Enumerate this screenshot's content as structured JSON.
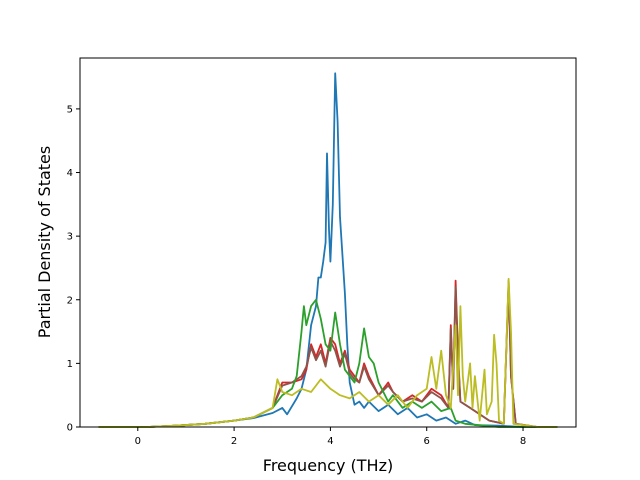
{
  "chart_data": {
    "type": "line",
    "title": "",
    "xlabel": "Frequency (THz)",
    "ylabel": "Partial Density of States",
    "xlim": [
      -1.2,
      9.1
    ],
    "ylim": [
      0,
      5.8
    ],
    "xticks": [
      0,
      2,
      4,
      6,
      8
    ],
    "yticks": [
      0,
      1,
      2,
      3,
      4,
      5
    ],
    "grid": false,
    "legend": "none",
    "series": [
      {
        "color": "#1f77b4",
        "points": [
          [
            -0.8,
            0
          ],
          [
            0.2,
            0
          ],
          [
            0.8,
            0.02
          ],
          [
            1.4,
            0.05
          ],
          [
            2.0,
            0.1
          ],
          [
            2.4,
            0.14
          ],
          [
            2.8,
            0.22
          ],
          [
            3.0,
            0.3
          ],
          [
            3.1,
            0.2
          ],
          [
            3.3,
            0.45
          ],
          [
            3.4,
            0.6
          ],
          [
            3.5,
            0.9
          ],
          [
            3.6,
            1.6
          ],
          [
            3.7,
            1.9
          ],
          [
            3.75,
            2.35
          ],
          [
            3.8,
            2.35
          ],
          [
            3.85,
            2.6
          ],
          [
            3.9,
            2.9
          ],
          [
            3.93,
            4.3
          ],
          [
            3.97,
            3.1
          ],
          [
            4.0,
            2.6
          ],
          [
            4.05,
            3.5
          ],
          [
            4.1,
            5.56
          ],
          [
            4.15,
            4.8
          ],
          [
            4.2,
            3.3
          ],
          [
            4.3,
            2.1
          ],
          [
            4.35,
            1.3
          ],
          [
            4.4,
            0.7
          ],
          [
            4.5,
            0.35
          ],
          [
            4.6,
            0.4
          ],
          [
            4.7,
            0.3
          ],
          [
            4.8,
            0.4
          ],
          [
            5.0,
            0.25
          ],
          [
            5.2,
            0.35
          ],
          [
            5.4,
            0.2
          ],
          [
            5.6,
            0.3
          ],
          [
            5.8,
            0.15
          ],
          [
            6.0,
            0.2
          ],
          [
            6.2,
            0.1
          ],
          [
            6.4,
            0.15
          ],
          [
            6.6,
            0.05
          ],
          [
            6.8,
            0.1
          ],
          [
            7.0,
            0.03
          ],
          [
            7.5,
            0.02
          ],
          [
            8.0,
            0.0
          ],
          [
            8.7,
            0
          ]
        ]
      },
      {
        "color": "#d62728",
        "points": [
          [
            -0.8,
            0
          ],
          [
            0.2,
            0
          ],
          [
            0.8,
            0.02
          ],
          [
            1.4,
            0.05
          ],
          [
            2.0,
            0.1
          ],
          [
            2.4,
            0.15
          ],
          [
            2.8,
            0.3
          ],
          [
            3.0,
            0.7
          ],
          [
            3.2,
            0.7
          ],
          [
            3.4,
            0.75
          ],
          [
            3.5,
            0.9
          ],
          [
            3.6,
            1.3
          ],
          [
            3.7,
            1.1
          ],
          [
            3.8,
            1.3
          ],
          [
            3.9,
            1.0
          ],
          [
            4.0,
            1.4
          ],
          [
            4.1,
            1.3
          ],
          [
            4.2,
            1.0
          ],
          [
            4.3,
            1.2
          ],
          [
            4.4,
            0.9
          ],
          [
            4.5,
            0.8
          ],
          [
            4.6,
            0.7
          ],
          [
            4.7,
            1.0
          ],
          [
            4.8,
            0.8
          ],
          [
            5.0,
            0.5
          ],
          [
            5.2,
            0.7
          ],
          [
            5.3,
            0.55
          ],
          [
            5.5,
            0.4
          ],
          [
            5.7,
            0.5
          ],
          [
            5.9,
            0.4
          ],
          [
            6.1,
            0.6
          ],
          [
            6.3,
            0.5
          ],
          [
            6.45,
            0.3
          ],
          [
            6.5,
            1.6
          ],
          [
            6.55,
            0.6
          ],
          [
            6.6,
            2.3
          ],
          [
            6.65,
            1.2
          ],
          [
            6.7,
            0.4
          ],
          [
            6.9,
            0.3
          ],
          [
            7.1,
            0.2
          ],
          [
            7.3,
            0.1
          ],
          [
            7.6,
            0.05
          ],
          [
            7.7,
            2.3
          ],
          [
            7.75,
            0.8
          ],
          [
            7.85,
            0.05
          ],
          [
            8.3,
            0
          ],
          [
            8.7,
            0
          ]
        ]
      },
      {
        "color": "#8c564b",
        "points": [
          [
            -0.8,
            0
          ],
          [
            0.2,
            0
          ],
          [
            0.8,
            0.02
          ],
          [
            1.4,
            0.05
          ],
          [
            2.0,
            0.1
          ],
          [
            2.4,
            0.15
          ],
          [
            2.8,
            0.3
          ],
          [
            3.0,
            0.65
          ],
          [
            3.2,
            0.7
          ],
          [
            3.4,
            0.8
          ],
          [
            3.5,
            0.95
          ],
          [
            3.6,
            1.25
          ],
          [
            3.7,
            1.05
          ],
          [
            3.8,
            1.2
          ],
          [
            3.9,
            0.95
          ],
          [
            4.0,
            1.35
          ],
          [
            4.1,
            1.2
          ],
          [
            4.2,
            0.95
          ],
          [
            4.3,
            1.15
          ],
          [
            4.4,
            0.85
          ],
          [
            4.5,
            0.75
          ],
          [
            4.6,
            0.7
          ],
          [
            4.7,
            0.95
          ],
          [
            4.8,
            0.75
          ],
          [
            5.0,
            0.5
          ],
          [
            5.2,
            0.65
          ],
          [
            5.3,
            0.55
          ],
          [
            5.5,
            0.4
          ],
          [
            5.7,
            0.45
          ],
          [
            5.9,
            0.4
          ],
          [
            6.1,
            0.55
          ],
          [
            6.3,
            0.45
          ],
          [
            6.45,
            0.3
          ],
          [
            6.5,
            1.55
          ],
          [
            6.55,
            0.6
          ],
          [
            6.6,
            2.2
          ],
          [
            6.65,
            1.1
          ],
          [
            6.7,
            0.4
          ],
          [
            6.9,
            0.3
          ],
          [
            7.1,
            0.2
          ],
          [
            7.3,
            0.1
          ],
          [
            7.6,
            0.05
          ],
          [
            7.7,
            2.25
          ],
          [
            7.75,
            0.8
          ],
          [
            7.85,
            0.05
          ],
          [
            8.3,
            0
          ],
          [
            8.7,
            0
          ]
        ]
      },
      {
        "color": "#2ca02c",
        "points": [
          [
            -0.8,
            0
          ],
          [
            0.2,
            0
          ],
          [
            0.8,
            0.02
          ],
          [
            1.4,
            0.05
          ],
          [
            2.0,
            0.1
          ],
          [
            2.4,
            0.15
          ],
          [
            2.8,
            0.3
          ],
          [
            3.0,
            0.5
          ],
          [
            3.2,
            0.6
          ],
          [
            3.3,
            0.8
          ],
          [
            3.4,
            1.5
          ],
          [
            3.45,
            1.9
          ],
          [
            3.5,
            1.6
          ],
          [
            3.6,
            1.9
          ],
          [
            3.7,
            2.0
          ],
          [
            3.8,
            1.7
          ],
          [
            3.9,
            1.3
          ],
          [
            4.0,
            1.2
          ],
          [
            4.1,
            1.8
          ],
          [
            4.2,
            1.3
          ],
          [
            4.3,
            0.9
          ],
          [
            4.4,
            0.8
          ],
          [
            4.5,
            0.7
          ],
          [
            4.6,
            1.0
          ],
          [
            4.7,
            1.55
          ],
          [
            4.8,
            1.1
          ],
          [
            4.9,
            1.0
          ],
          [
            5.0,
            0.7
          ],
          [
            5.2,
            0.4
          ],
          [
            5.3,
            0.5
          ],
          [
            5.5,
            0.3
          ],
          [
            5.7,
            0.4
          ],
          [
            5.9,
            0.3
          ],
          [
            6.1,
            0.4
          ],
          [
            6.3,
            0.25
          ],
          [
            6.5,
            0.3
          ],
          [
            6.6,
            0.1
          ],
          [
            6.8,
            0.05
          ],
          [
            7.2,
            0.02
          ],
          [
            7.5,
            0
          ],
          [
            8.7,
            0
          ]
        ]
      },
      {
        "color": "#bcbd22",
        "points": [
          [
            -0.8,
            0
          ],
          [
            0.2,
            0
          ],
          [
            0.8,
            0.02
          ],
          [
            1.4,
            0.05
          ],
          [
            2.0,
            0.1
          ],
          [
            2.4,
            0.15
          ],
          [
            2.8,
            0.3
          ],
          [
            2.9,
            0.75
          ],
          [
            3.0,
            0.55
          ],
          [
            3.2,
            0.5
          ],
          [
            3.4,
            0.6
          ],
          [
            3.6,
            0.55
          ],
          [
            3.8,
            0.75
          ],
          [
            4.0,
            0.6
          ],
          [
            4.2,
            0.5
          ],
          [
            4.4,
            0.45
          ],
          [
            4.6,
            0.55
          ],
          [
            4.8,
            0.4
          ],
          [
            5.0,
            0.5
          ],
          [
            5.2,
            0.35
          ],
          [
            5.4,
            0.5
          ],
          [
            5.6,
            0.3
          ],
          [
            5.8,
            0.5
          ],
          [
            6.0,
            0.6
          ],
          [
            6.1,
            1.1
          ],
          [
            6.2,
            0.6
          ],
          [
            6.3,
            1.2
          ],
          [
            6.4,
            0.5
          ],
          [
            6.5,
            0.3
          ],
          [
            6.6,
            1.6
          ],
          [
            6.65,
            0.5
          ],
          [
            6.7,
            1.9
          ],
          [
            6.75,
            0.8
          ],
          [
            6.8,
            0.4
          ],
          [
            6.9,
            1.0
          ],
          [
            6.95,
            0.3
          ],
          [
            7.0,
            0.8
          ],
          [
            7.1,
            0.1
          ],
          [
            7.2,
            0.9
          ],
          [
            7.25,
            0.2
          ],
          [
            7.35,
            0.4
          ],
          [
            7.4,
            1.45
          ],
          [
            7.45,
            1.0
          ],
          [
            7.5,
            0.1
          ],
          [
            7.6,
            0.05
          ],
          [
            7.7,
            2.33
          ],
          [
            7.75,
            1.5
          ],
          [
            7.8,
            0.05
          ],
          [
            8.3,
            0
          ],
          [
            8.7,
            0
          ]
        ]
      }
    ]
  }
}
